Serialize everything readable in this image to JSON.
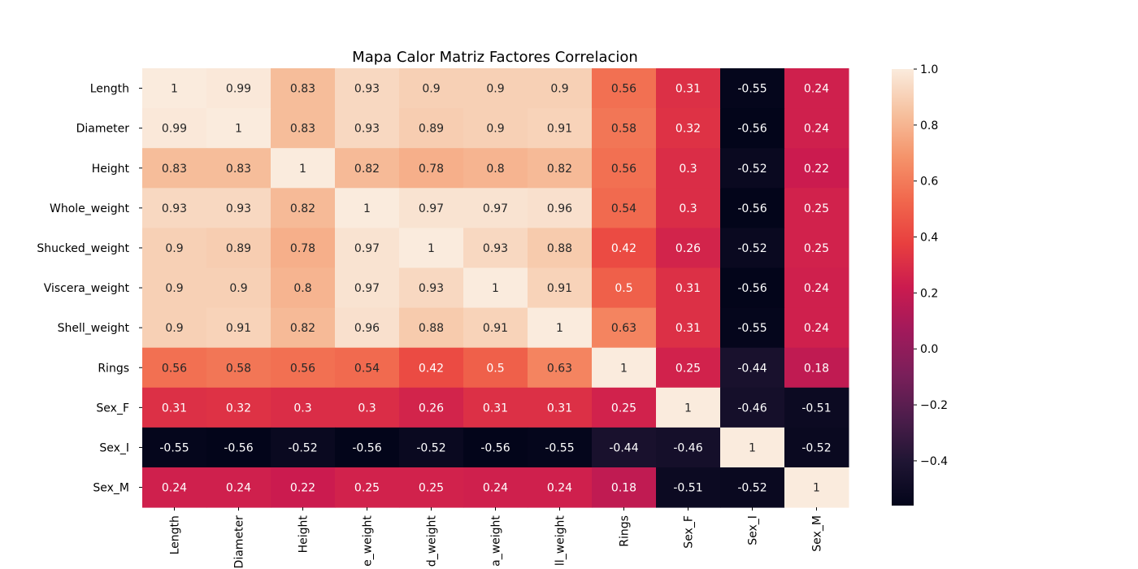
{
  "chart_data": {
    "type": "heatmap",
    "title": "Mapa Calor Matriz Factores Correlacion",
    "xlabel": "",
    "ylabel": "",
    "row_labels": [
      "Length",
      "Diameter",
      "Height",
      "Whole_weight",
      "Shucked_weight",
      "Viscera_weight",
      "Shell_weight",
      "Rings",
      "Sex_F",
      "Sex_I",
      "Sex_M"
    ],
    "col_labels": [
      "Length",
      "Diameter",
      "Height",
      "e_weight",
      "d_weight",
      "a_weight",
      "ll_weight",
      "Rings",
      "Sex_F",
      "Sex_I",
      "Sex_M"
    ],
    "values": [
      [
        1,
        0.99,
        0.83,
        0.93,
        0.9,
        0.9,
        0.9,
        0.56,
        0.31,
        -0.55,
        0.24
      ],
      [
        0.99,
        1,
        0.83,
        0.93,
        0.89,
        0.9,
        0.91,
        0.58,
        0.32,
        -0.56,
        0.24
      ],
      [
        0.83,
        0.83,
        1,
        0.82,
        0.78,
        0.8,
        0.82,
        0.56,
        0.3,
        -0.52,
        0.22
      ],
      [
        0.93,
        0.93,
        0.82,
        1,
        0.97,
        0.97,
        0.96,
        0.54,
        0.3,
        -0.56,
        0.25
      ],
      [
        0.9,
        0.89,
        0.78,
        0.97,
        1,
        0.93,
        0.88,
        0.42,
        0.26,
        -0.52,
        0.25
      ],
      [
        0.9,
        0.9,
        0.8,
        0.97,
        0.93,
        1,
        0.91,
        0.5,
        0.31,
        -0.56,
        0.24
      ],
      [
        0.9,
        0.91,
        0.82,
        0.96,
        0.88,
        0.91,
        1,
        0.63,
        0.31,
        -0.55,
        0.24
      ],
      [
        0.56,
        0.58,
        0.56,
        0.54,
        0.42,
        0.5,
        0.63,
        1,
        0.25,
        -0.44,
        0.18
      ],
      [
        0.31,
        0.32,
        0.3,
        0.3,
        0.26,
        0.31,
        0.31,
        0.25,
        1,
        -0.46,
        -0.51
      ],
      [
        -0.55,
        -0.56,
        -0.52,
        -0.56,
        -0.52,
        -0.56,
        -0.55,
        -0.44,
        -0.46,
        1,
        -0.52
      ],
      [
        0.24,
        0.24,
        0.22,
        0.25,
        0.25,
        0.24,
        0.24,
        0.18,
        -0.51,
        -0.52,
        1
      ]
    ],
    "colorbar": {
      "range": [
        -0.56,
        1.0
      ],
      "ticks": [
        1.0,
        0.8,
        0.6,
        0.4,
        0.2,
        0.0,
        -0.2,
        -0.4
      ],
      "tick_labels": [
        "1.0",
        "0.8",
        "0.6",
        "0.4",
        "0.2",
        "0.0",
        "−0.2",
        "−0.4"
      ],
      "colormap": "rocket",
      "colormap_stops": [
        {
          "v": 0.0,
          "c": "#03051a"
        },
        {
          "v": 0.1,
          "c": "#1f1533"
        },
        {
          "v": 0.2,
          "c": "#4c1d4b"
        },
        {
          "v": 0.3,
          "c": "#7a1f5a"
        },
        {
          "v": 0.4,
          "c": "#a11a5b"
        },
        {
          "v": 0.5,
          "c": "#cb1b4f"
        },
        {
          "v": 0.6,
          "c": "#e83f3f"
        },
        {
          "v": 0.7,
          "c": "#f1684d"
        },
        {
          "v": 0.8,
          "c": "#f5946b"
        },
        {
          "v": 0.9,
          "c": "#f6c19f"
        },
        {
          "v": 1.0,
          "c": "#faebdd"
        }
      ]
    },
    "grid": false,
    "annotations": true
  }
}
